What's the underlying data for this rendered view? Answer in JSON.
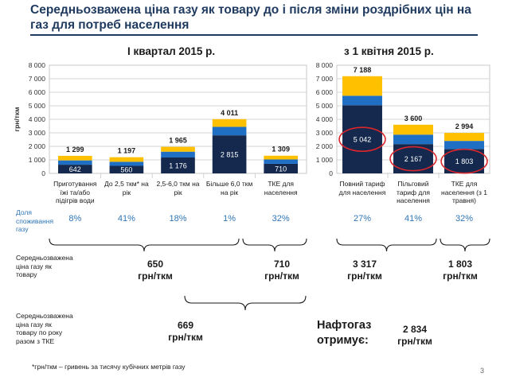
{
  "title": "Середньозважена ціна газу як товару до і після зміни роздрібних цін на газ для потреб населення",
  "page_number": "3",
  "footnote": "*грн/ткм – гривень за тисячу кубічних метрів газу",
  "colors": {
    "navy": "#14294d",
    "blue": "#1f6fc5",
    "gold": "#ffc000",
    "grey": "#c8c8c8",
    "share": "#2e75b6",
    "circle": "#d9262c",
    "title": "#1f3a5f"
  },
  "chart_data": [
    {
      "type": "bar",
      "stacked": true,
      "title": "I квартал 2015 р.",
      "ylabel": "грн/ткм",
      "ylim": [
        0,
        8000
      ],
      "yticks": [
        "0",
        "1 000",
        "2 000",
        "3 000",
        "4 000",
        "5 000",
        "6 000",
        "7 000",
        "8 000"
      ],
      "categories": [
        "Приготування їжі та/або підігрів води",
        "До 2,5 ткм* на рік",
        "2,5-6,0 ткм на рік",
        "Більше 6,0 ткм на рік",
        "ТКЕ для населення"
      ],
      "totals": [
        1299,
        1197,
        1965,
        4011,
        1309
      ],
      "totals_label": [
        "1 299",
        "1 197",
        "1 965",
        "4 011",
        "1 309"
      ],
      "series": [
        {
          "values": [
            642,
            560,
            1176,
            2815,
            710
          ],
          "labels": [
            "642",
            "560",
            "1 176",
            "2 815",
            "710"
          ]
        },
        {
          "values": [
            320,
            300,
            430,
            630,
            320
          ]
        },
        {
          "values": [
            337,
            337,
            359,
            566,
            279
          ]
        }
      ]
    },
    {
      "type": "bar",
      "stacked": true,
      "title": "з 1 квітня 2015 р.",
      "ylim": [
        0,
        8000
      ],
      "yticks": [
        "0",
        "1 000",
        "2 000",
        "3 000",
        "4 000",
        "5 000",
        "6 000",
        "7 000",
        "8 000"
      ],
      "categories": [
        "Повний тариф для населення",
        "Пільговий тариф для населення",
        "ТКЕ для населення (з 1 травня)"
      ],
      "totals": [
        7188,
        3600,
        2994
      ],
      "totals_label": [
        "7 188",
        "3 600",
        "2 994"
      ],
      "series": [
        {
          "values": [
            5042,
            2167,
            1803
          ],
          "labels": [
            "5 042",
            "2 167",
            "1 803"
          ]
        },
        {
          "values": [
            700,
            700,
            600
          ]
        },
        {
          "values": [
            1446,
            733,
            591
          ]
        }
      ],
      "highlighted": [
        "5 042",
        "2 167",
        "1 803"
      ]
    }
  ],
  "rows": {
    "share_label": "Доля споживання газу",
    "shares_q1": [
      "8%",
      "41%",
      "18%",
      "1%",
      "32%"
    ],
    "shares_apr": [
      "27%",
      "41%",
      "32%"
    ],
    "weighted_label": "Середньозважена ціна газу як товару",
    "weighted_q1_hh": {
      "value": "650",
      "unit": "грн/ткм"
    },
    "weighted_q1_tke": {
      "value": "710",
      "unit": "грн/ткм"
    },
    "weighted_apr_hh": {
      "value": "3 317",
      "unit": "грн/ткм"
    },
    "weighted_apr_tke": {
      "value": "1 803",
      "unit": "грн/ткм"
    },
    "yearly_label": "Середньозважена ціна газу як товару по року разом з ТКЕ",
    "yearly": {
      "value": "669",
      "unit": "грн/ткм"
    },
    "naftogaz_label": "Нафтогаз отримує:",
    "naftogaz": {
      "value": "2 834",
      "unit": "грн/ткм"
    }
  }
}
